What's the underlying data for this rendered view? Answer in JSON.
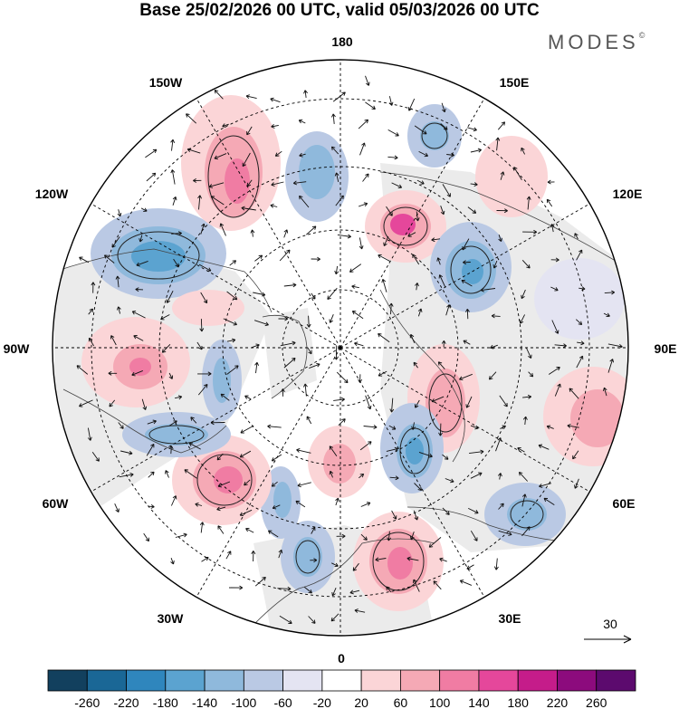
{
  "header": {
    "title": "Base 25/02/2026 00 UTC, valid 05/03/2026 00 UTC",
    "brand": "MODES",
    "brand_mark": "©"
  },
  "map": {
    "projection": "north-polar-stereographic",
    "longitude_labels": {
      "top": "180",
      "bottom": "0",
      "left": "90W",
      "right": "90E",
      "upper_left_1": "150W",
      "upper_left_2": "120W",
      "upper_right_1": "150E",
      "upper_right_2": "120E",
      "lower_left_1": "60W",
      "lower_left_2": "30W",
      "lower_right_1": "60E",
      "lower_right_2": "30E"
    },
    "vector_reference": {
      "label": "30"
    }
  },
  "colorbar": {
    "tick_labels": [
      "-260",
      "-220",
      "-180",
      "-140",
      "-100",
      "-60",
      "-20",
      "20",
      "60",
      "100",
      "140",
      "180",
      "220",
      "260"
    ],
    "colors": [
      "#12405e",
      "#1a6796",
      "#2f86bd",
      "#5ba3d0",
      "#8fb9dc",
      "#bac9e4",
      "#e4e4f2",
      "#ffffff",
      "#fbd5d7",
      "#f5a9b5",
      "#f07ca3",
      "#e5479b",
      "#c51c8a",
      "#8c0b7d",
      "#5c0a6e"
    ]
  }
}
